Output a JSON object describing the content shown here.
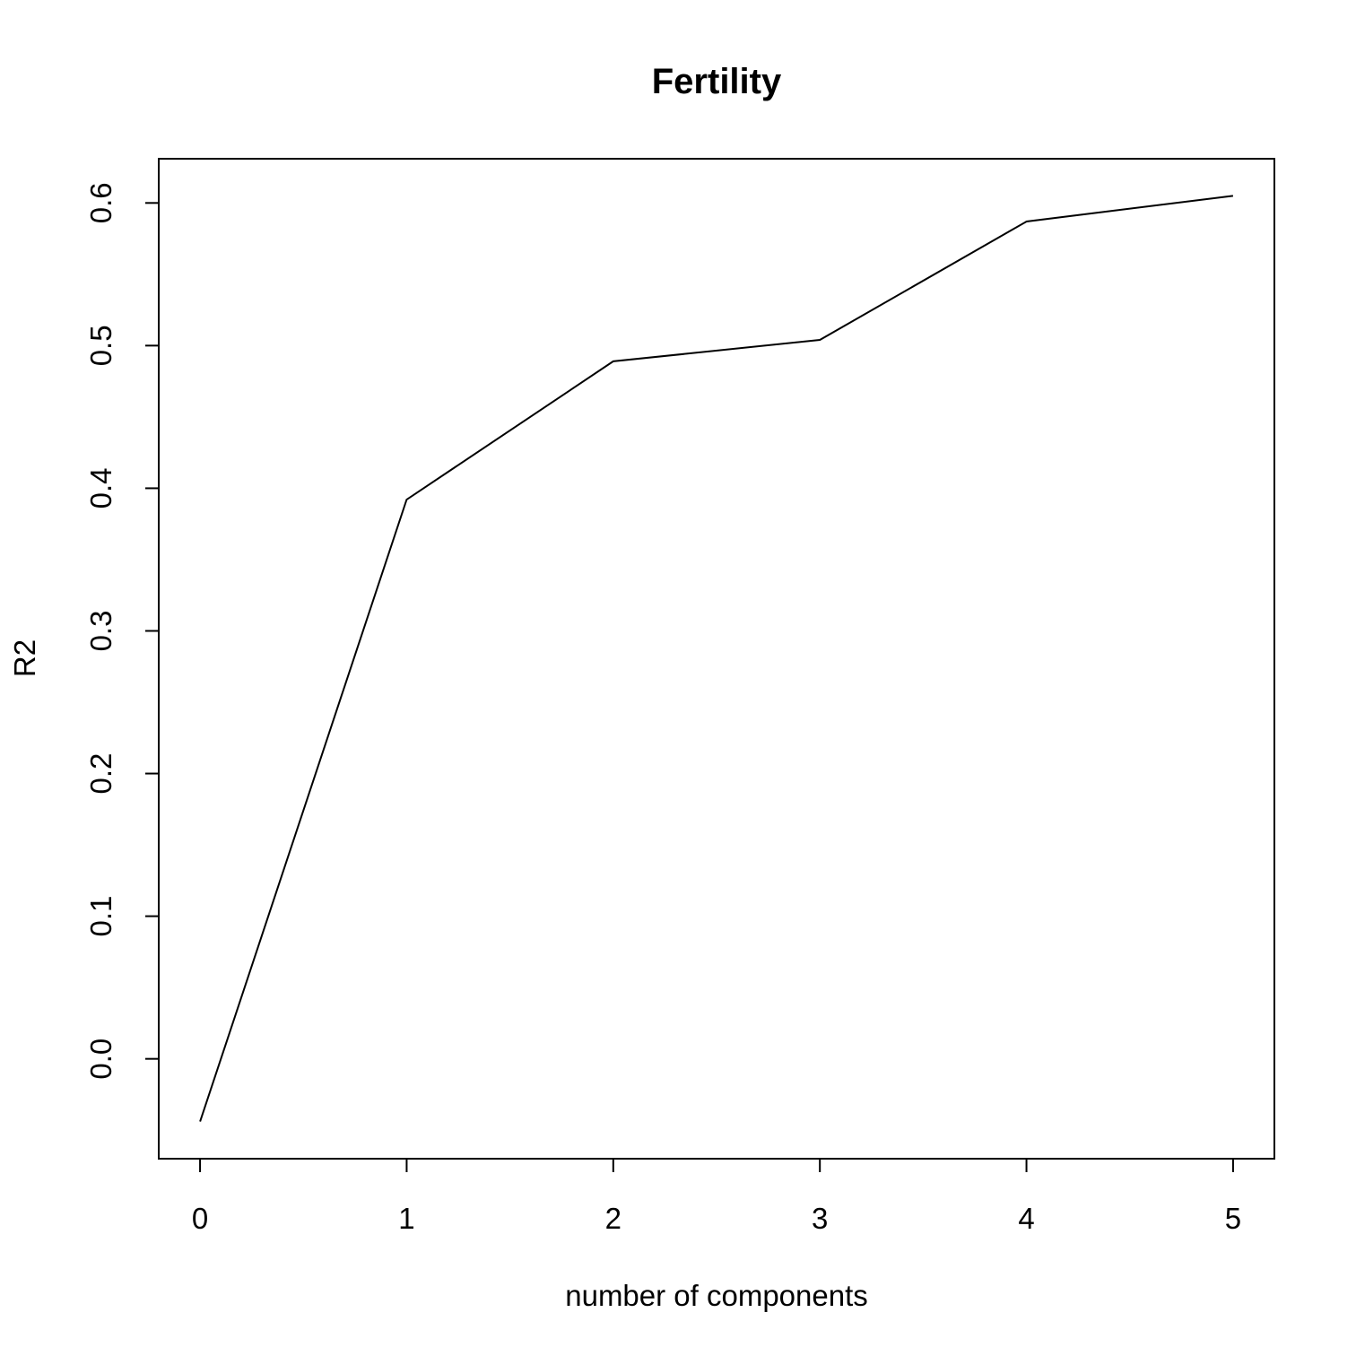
{
  "chart_data": {
    "type": "line",
    "title": "Fertility",
    "xlabel": "number of components",
    "ylabel": "R2",
    "x": [
      0,
      1,
      2,
      3,
      4,
      5
    ],
    "series": [
      {
        "values": [
          -0.044,
          0.392,
          0.489,
          0.504,
          0.587,
          0.605
        ]
      }
    ],
    "xticks": [
      0,
      1,
      2,
      3,
      4,
      5
    ],
    "xtick_labels": [
      "0",
      "1",
      "2",
      "3",
      "4",
      "5"
    ],
    "yticks": [
      0.0,
      0.1,
      0.2,
      0.3,
      0.4,
      0.5,
      0.6
    ],
    "ytick_labels": [
      "0.0",
      "0.1",
      "0.2",
      "0.3",
      "0.4",
      "0.5",
      "0.6"
    ],
    "xlim": [
      -0.2,
      5.2
    ],
    "ylim": [
      -0.07,
      0.631
    ],
    "grid": false,
    "line_color": "#000000"
  }
}
